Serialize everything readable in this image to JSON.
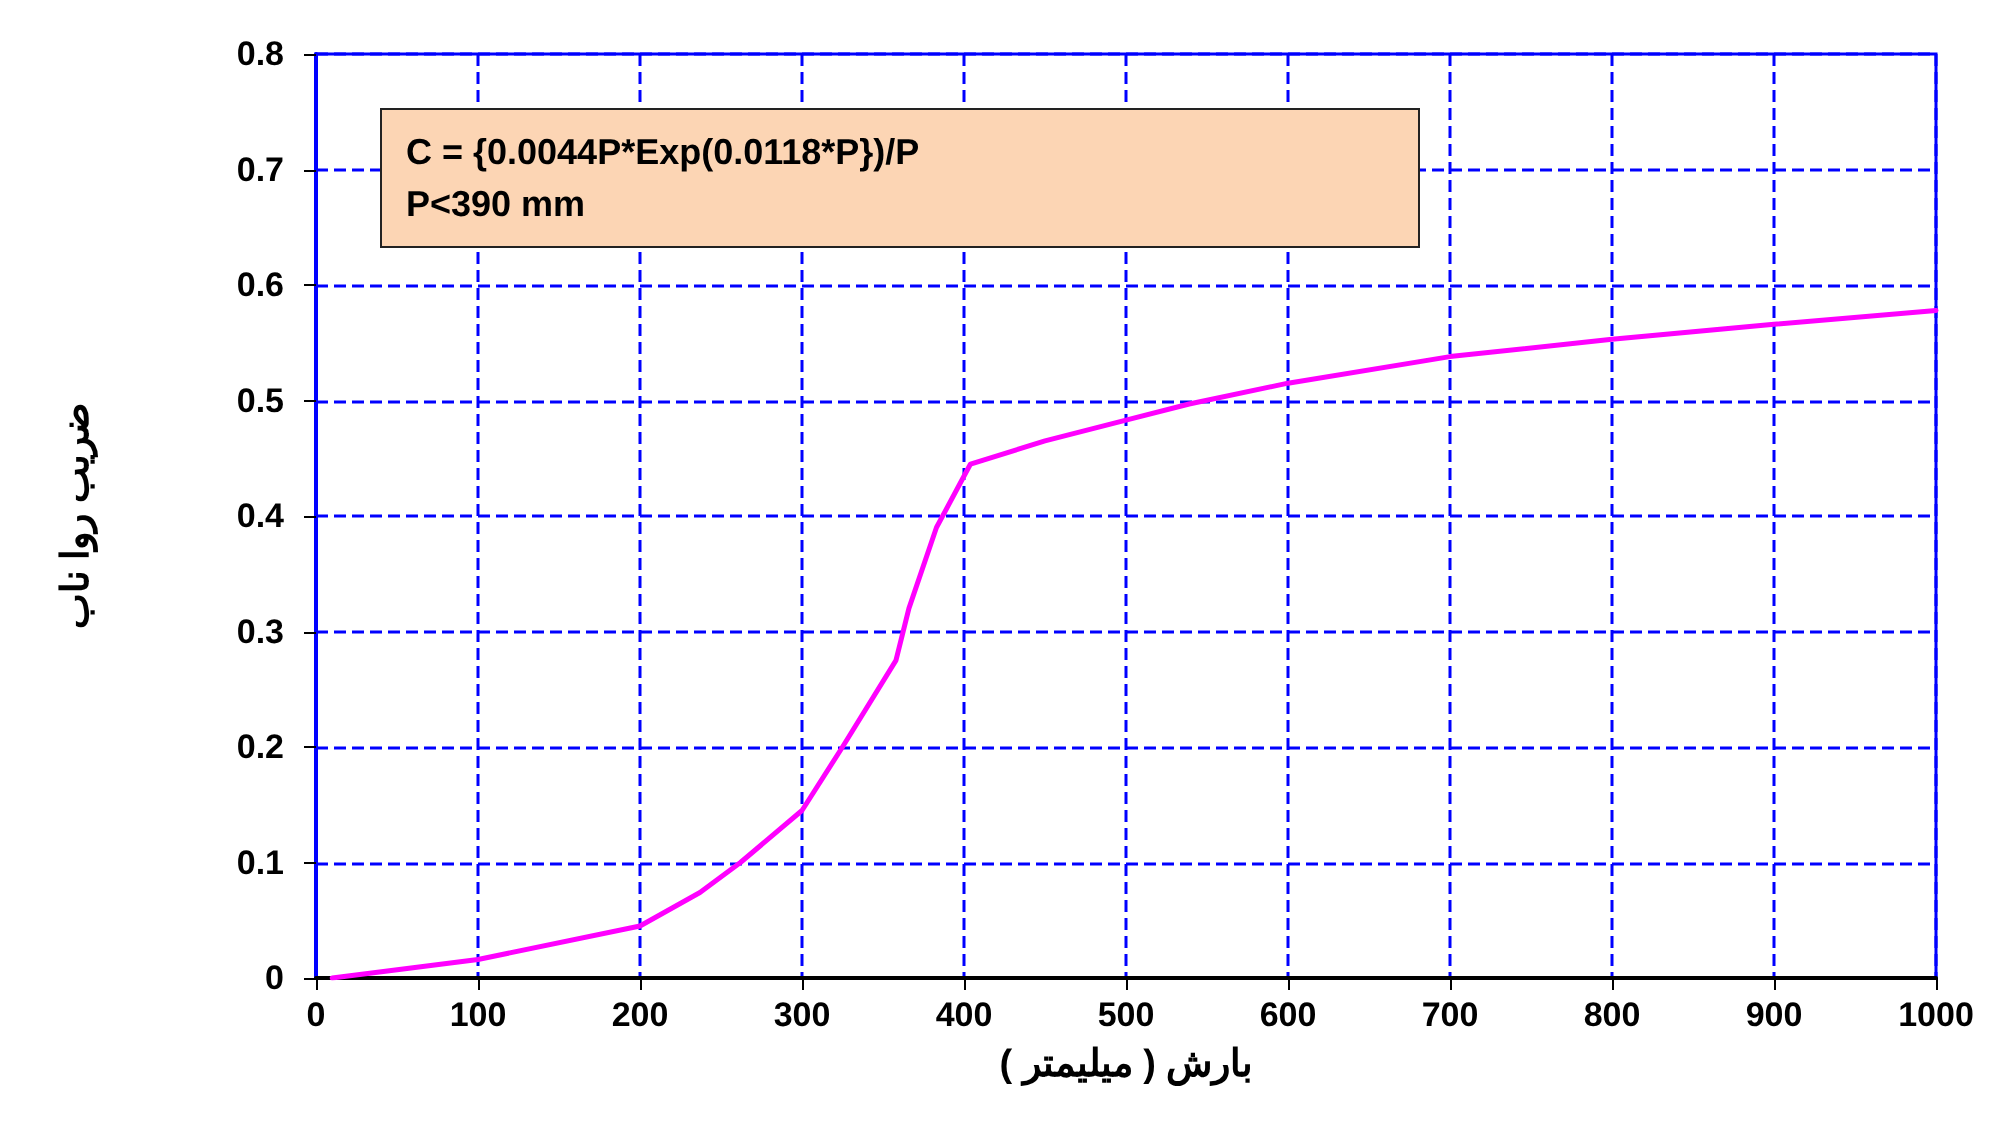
{
  "chart_data": {
    "type": "line",
    "xlabel": "بارش ( میلیمتر )",
    "ylabel": "ضریب روا ناب",
    "annotations": [
      "C = {0.0044P*Exp(0.0118*P})/P\nP<390 mm"
    ],
    "x": [
      10,
      100,
      200,
      237,
      262,
      300,
      325,
      358,
      366,
      383,
      404,
      450,
      500,
      539,
      600,
      700,
      800,
      900,
      1000
    ],
    "series": [
      {
        "color": "#ff00ff",
        "values": [
          0,
          0.016,
          0.045,
          0.074,
          0.1,
          0.145,
          0.2,
          0.275,
          0.32,
          0.39,
          0.445,
          0.465,
          0.483,
          0.497,
          0.515,
          0.538,
          0.553,
          0.566,
          0.578
        ]
      }
    ],
    "xlim": [
      0,
      1000
    ],
    "xticks": [
      0,
      100,
      200,
      300,
      400,
      500,
      600,
      700,
      800,
      900,
      1000
    ],
    "ylim": [
      0,
      0.8
    ],
    "yticks": [
      0,
      0.1,
      0.2,
      0.3,
      0.4,
      0.5,
      0.6,
      0.7,
      0.8
    ],
    "grid": true,
    "marker": "none",
    "line_style": "solid"
  }
}
